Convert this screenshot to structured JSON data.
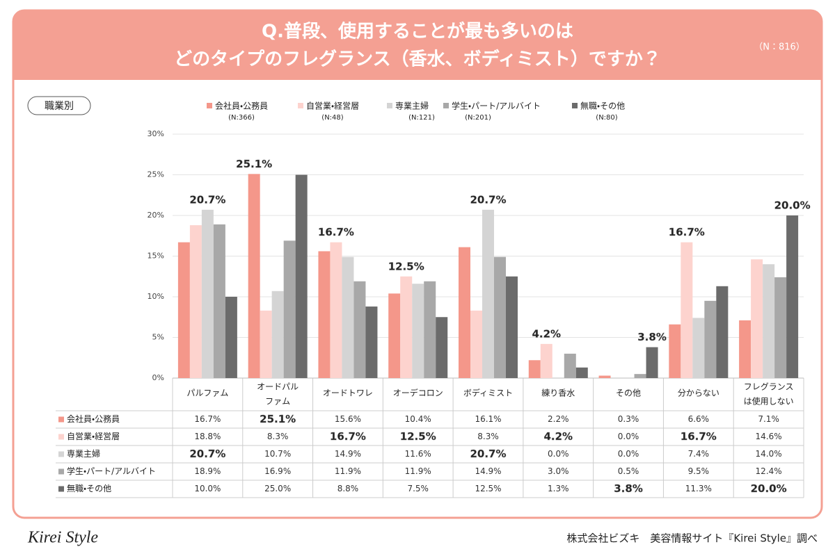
{
  "chart_data": {
    "type": "bar",
    "title": [
      "Q.普段、使用することが最も多いのは",
      "どのタイプのフレグランス（香水、ボディミスト）ですか？"
    ],
    "sample_note": "（N：816）",
    "badge": "職業別",
    "categories": [
      [
        "パルファム"
      ],
      [
        "オードパル",
        "ファム"
      ],
      [
        "オードトワレ"
      ],
      [
        "オーデコロン"
      ],
      [
        "ボディミスト"
      ],
      [
        "練り香水"
      ],
      [
        "その他"
      ],
      [
        "分からない"
      ],
      [
        "フレグランス",
        "は使用しない"
      ]
    ],
    "series": [
      {
        "name": "会社員・公務員",
        "note": "(N:366)",
        "color": "#f4978a",
        "values": [
          16.7,
          25.1,
          15.6,
          10.4,
          16.1,
          2.2,
          0.3,
          6.6,
          7.1
        ],
        "value_labels": [
          "16.7%",
          "25.1%",
          "15.6%",
          "10.4%",
          "16.1%",
          "2.2%",
          "0.3%",
          "6.6%",
          "7.1%"
        ]
      },
      {
        "name": "自営業・経営層",
        "note": "(N:48)",
        "color": "#fdd3ce",
        "values": [
          18.8,
          8.3,
          16.7,
          12.5,
          8.3,
          4.2,
          0.0,
          16.7,
          14.6
        ],
        "value_labels": [
          "18.8%",
          "8.3%",
          "16.7%",
          "12.5%",
          "8.3%",
          "4.2%",
          "0.0%",
          "16.7%",
          "14.6%"
        ]
      },
      {
        "name": "専業主婦",
        "note": "(N:121)",
        "color": "#d4d4d4",
        "values": [
          20.7,
          10.7,
          14.9,
          11.6,
          20.7,
          0.0,
          0.0,
          7.4,
          14.0
        ],
        "value_labels": [
          "20.7%",
          "10.7%",
          "14.9%",
          "11.6%",
          "20.7%",
          "0.0%",
          "0.0%",
          "7.4%",
          "14.0%"
        ]
      },
      {
        "name": "学生・パート/アルバイト",
        "note": "(N:201)",
        "color": "#a8a8a8",
        "values": [
          18.9,
          16.9,
          11.9,
          11.9,
          14.9,
          3.0,
          0.5,
          9.5,
          12.4
        ],
        "value_labels": [
          "18.9%",
          "16.9%",
          "11.9%",
          "11.9%",
          "14.9%",
          "3.0%",
          "0.5%",
          "9.5%",
          "12.4%"
        ]
      },
      {
        "name": "無職・その他",
        "note": "(N:80)",
        "color": "#6b6b6b",
        "values": [
          10.0,
          25.0,
          8.8,
          7.5,
          12.5,
          1.3,
          3.8,
          11.3,
          20.0
        ],
        "value_labels": [
          "10.0%",
          "25.0%",
          "8.8%",
          "7.5%",
          "12.5%",
          "1.3%",
          "3.8%",
          "11.3%",
          "20.0%"
        ]
      }
    ],
    "ylim": [
      0,
      30
    ],
    "yticks": [
      {
        "value": 0,
        "label": "0%"
      },
      {
        "value": 5,
        "label": "5%"
      },
      {
        "value": 10,
        "label": "10%"
      },
      {
        "value": 15,
        "label": "15%"
      },
      {
        "value": 20,
        "label": "20%"
      },
      {
        "value": 25,
        "label": "25%"
      },
      {
        "value": 30,
        "label": "30%"
      }
    ],
    "grid": true,
    "footer": {
      "logo": "Kirei Style",
      "source": "株式会社ビズキ　美容情報サイト『Kirei Style』調べ"
    }
  }
}
